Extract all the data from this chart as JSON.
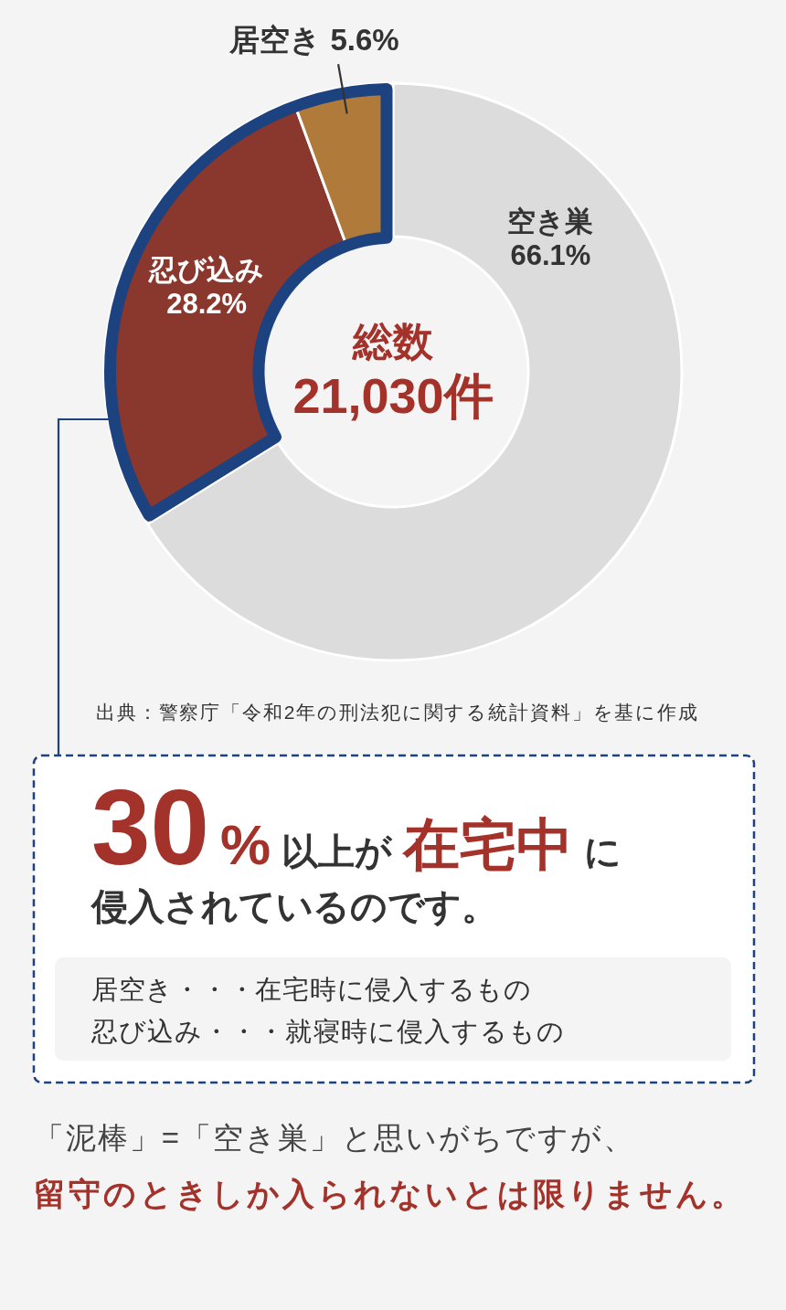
{
  "chart_data": {
    "type": "donut",
    "title": "総数",
    "subtitle": "21,030件",
    "categories": [
      "空き巣",
      "忍び込み",
      "居空き"
    ],
    "values": [
      66.1,
      28.2,
      5.6
    ],
    "colors": [
      "#dcdcdc",
      "#8a372e",
      "#b07a3b"
    ],
    "value_labels": [
      "66.1%",
      "28.2%",
      "5.6%"
    ],
    "annotations": [
      "出典：警察庁「令和2年の刑法犯に関する統計資料」を基に作成",
      "**30%**以上が**在宅中**に",
      "侵入されているのです。",
      "居空き・・・在宅時に侵入するもの",
      "忍び込み・・・就寝時に侵入するもの",
      "「泥棒」=「空き巣」と思いがちですが、",
      "留守のときしか入られないとは限りません。"
    ]
  }
}
